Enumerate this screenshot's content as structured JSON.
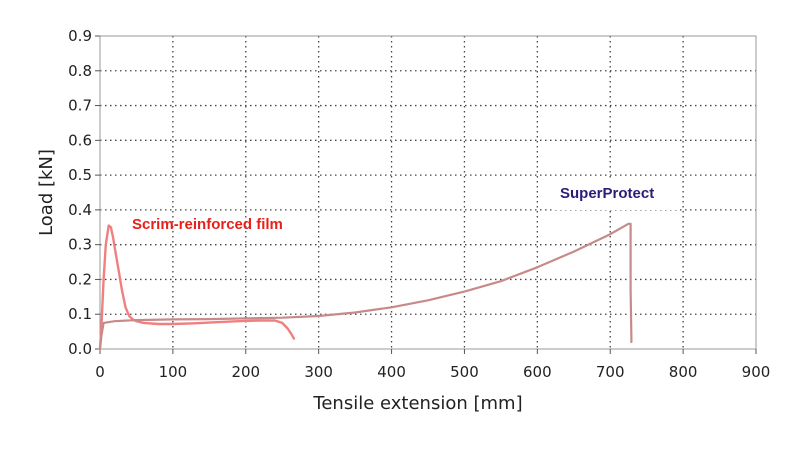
{
  "chart_data": {
    "type": "line",
    "xlabel": "Tensile extension [mm]",
    "ylabel": "Load [kN]",
    "xlim": [
      0,
      900
    ],
    "ylim": [
      0,
      0.9
    ],
    "x_ticks": [
      "0",
      "100",
      "200",
      "300",
      "400",
      "500",
      "600",
      "700",
      "800",
      "900"
    ],
    "y_ticks": [
      "0.0",
      "0.1",
      "0.2",
      "0.3",
      "0.4",
      "0.5",
      "0.6",
      "0.7",
      "0.8",
      "0.9"
    ],
    "grid": true,
    "grid_style": "dotted",
    "series": [
      {
        "name": "Scrim-reinforced film",
        "color": "#f08080",
        "x": [
          0,
          2,
          5,
          8,
          12,
          15,
          18,
          22,
          26,
          30,
          35,
          40,
          45,
          50,
          60,
          80,
          100,
          130,
          160,
          190,
          220,
          240,
          250,
          257,
          262,
          266
        ],
        "y": [
          0.0,
          0.07,
          0.2,
          0.3,
          0.355,
          0.35,
          0.32,
          0.27,
          0.22,
          0.17,
          0.12,
          0.095,
          0.085,
          0.08,
          0.075,
          0.072,
          0.072,
          0.074,
          0.077,
          0.08,
          0.082,
          0.082,
          0.075,
          0.06,
          0.045,
          0.03
        ]
      },
      {
        "name": "SuperProtect",
        "color": "#c78a8a",
        "x": [
          0,
          2,
          5,
          20,
          50,
          100,
          150,
          200,
          250,
          300,
          350,
          400,
          450,
          500,
          550,
          600,
          650,
          700,
          725,
          728,
          728,
          729,
          729
        ],
        "y": [
          0.0,
          0.04,
          0.075,
          0.08,
          0.083,
          0.085,
          0.086,
          0.088,
          0.09,
          0.095,
          0.105,
          0.12,
          0.14,
          0.165,
          0.195,
          0.235,
          0.28,
          0.33,
          0.36,
          0.36,
          0.17,
          0.03,
          0.02
        ]
      }
    ],
    "annotations": [
      {
        "text": "Scrim-reinforced film",
        "color": "#e8201a"
      },
      {
        "text": "SuperProtect",
        "color": "#2b1c7a"
      }
    ]
  }
}
